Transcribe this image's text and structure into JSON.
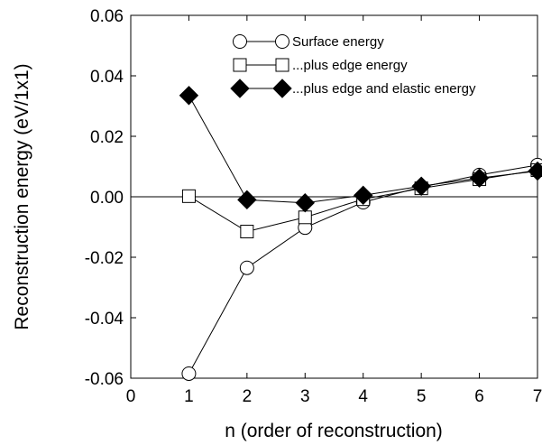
{
  "chart_data": {
    "type": "line",
    "xlabel": "n (order of reconstruction)",
    "ylabel": "Reconstruction energy (eV/1x1)",
    "xlim": [
      0,
      7
    ],
    "ylim": [
      -0.06,
      0.06
    ],
    "x_ticks": [
      "0",
      "1",
      "2",
      "3",
      "4",
      "5",
      "6",
      "7"
    ],
    "y_ticks": [
      "-0.06",
      "-0.04",
      "-0.02",
      "0.00",
      "0.02",
      "0.04",
      "0.06"
    ],
    "grid": false,
    "zero_line": true,
    "legend_position": "top-right",
    "series": [
      {
        "name": "Surface  energy",
        "marker": "open-circle",
        "x": [
          1,
          2,
          3,
          4,
          5,
          6,
          7
        ],
        "y": [
          -0.0585,
          -0.0235,
          -0.0102,
          -0.0018,
          0.0032,
          0.0072,
          0.0105
        ]
      },
      {
        "name": "...plus edge energy",
        "marker": "open-square",
        "x": [
          1,
          2,
          3,
          4,
          5,
          6,
          7
        ],
        "y": [
          0.0002,
          -0.0115,
          -0.0068,
          -0.0008,
          0.0028,
          0.0058,
          0.0088
        ]
      },
      {
        "name": "...plus edge and elastic energy",
        "marker": "filled-diamond",
        "x": [
          1,
          2,
          3,
          4,
          5,
          6,
          7
        ],
        "y": [
          0.0335,
          -0.001,
          -0.002,
          0.0005,
          0.0035,
          0.0062,
          0.0085
        ]
      }
    ]
  }
}
